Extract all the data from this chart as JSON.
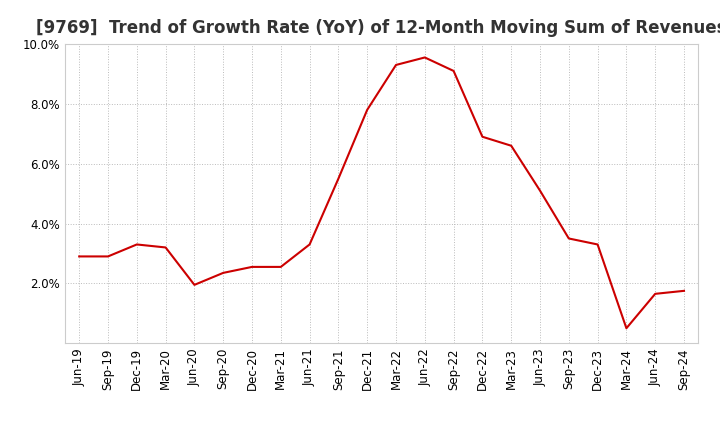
{
  "title": "[9769]  Trend of Growth Rate (YoY) of 12-Month Moving Sum of Revenues",
  "x_labels": [
    "Jun-19",
    "Sep-19",
    "Dec-19",
    "Mar-20",
    "Jun-20",
    "Sep-20",
    "Dec-20",
    "Mar-21",
    "Jun-21",
    "Sep-21",
    "Dec-21",
    "Mar-22",
    "Jun-22",
    "Sep-22",
    "Dec-22",
    "Mar-23",
    "Jun-23",
    "Sep-23",
    "Dec-23",
    "Mar-24",
    "Jun-24",
    "Sep-24"
  ],
  "y_values": [
    2.9,
    2.9,
    3.3,
    3.2,
    1.95,
    2.35,
    2.55,
    2.55,
    3.3,
    5.5,
    7.8,
    9.3,
    9.55,
    9.1,
    6.9,
    6.6,
    5.1,
    3.5,
    3.3,
    0.5,
    1.65,
    1.75
  ],
  "line_color": "#cc0000",
  "ylim_min": 0.0,
  "ylim_max": 10.0,
  "yticks": [
    2.0,
    4.0,
    6.0,
    8.0,
    10.0
  ],
  "background_color": "#ffffff",
  "grid_color": "#bbbbbb",
  "title_fontsize": 12,
  "tick_fontsize": 8.5
}
